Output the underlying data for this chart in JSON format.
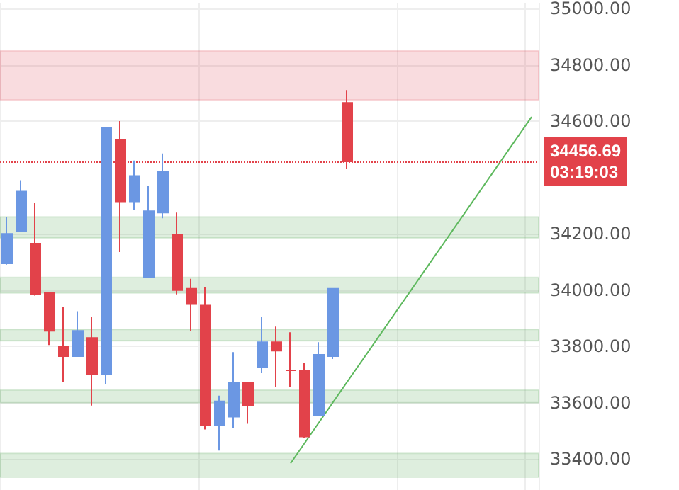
{
  "chart_data": {
    "type": "candlestick",
    "categories": [
      null,
      null,
      null,
      null,
      null,
      null,
      null,
      null,
      null,
      null,
      null,
      null,
      null,
      null,
      null,
      null,
      null,
      null,
      null,
      null,
      null,
      null,
      null,
      null,
      null,
      null,
      null,
      null,
      null,
      null,
      null,
      null,
      null,
      null,
      null,
      null,
      null,
      null
    ],
    "ohlc": [
      [
        34095,
        34260,
        34090,
        34200
      ],
      [
        34210,
        34390,
        34210,
        34350
      ],
      [
        34165,
        34310,
        33980,
        33985
      ],
      [
        33990,
        33990,
        33805,
        33855
      ],
      [
        33800,
        33940,
        33675,
        33765
      ],
      [
        33765,
        33925,
        33765,
        33855
      ],
      [
        33830,
        33905,
        33590,
        33700
      ],
      [
        33700,
        34575,
        33665,
        34575
      ],
      [
        34535,
        34600,
        34135,
        34315
      ],
      [
        34315,
        34460,
        34285,
        34405
      ],
      [
        34045,
        34370,
        34045,
        34280
      ],
      [
        34275,
        34485,
        34255,
        34420
      ],
      [
        34195,
        34275,
        33985,
        34000
      ],
      [
        34005,
        34040,
        33855,
        33950
      ],
      [
        33945,
        34010,
        33505,
        33520
      ],
      [
        33520,
        33625,
        33430,
        33605
      ],
      [
        33550,
        33780,
        33510,
        33670
      ],
      [
        33670,
        33675,
        33525,
        33590
      ],
      [
        33725,
        33905,
        33705,
        33815
      ],
      [
        33815,
        33870,
        33655,
        33785
      ],
      [
        33715,
        33850,
        33655,
        33715
      ],
      [
        33715,
        33740,
        33475,
        33480
      ],
      [
        33555,
        33815,
        33555,
        33770
      ],
      [
        33765,
        34005,
        33755,
        34005
      ],
      [
        34665,
        34710,
        34430,
        34456.69
      ],
      null,
      null,
      null,
      null,
      null,
      null,
      null,
      null,
      null,
      null,
      null,
      null,
      null
    ],
    "colors": [
      "#6b97e3",
      "#6b97e3",
      "#e2424a",
      "#e2424a",
      "#e2424a",
      "#6b97e3",
      "#e2424a",
      "#6b97e3",
      "#e2424a",
      "#6b97e3",
      "#6b97e3",
      "#6b97e3",
      "#e2424a",
      "#e2424a",
      "#e2424a",
      "#6b97e3",
      "#6b97e3",
      "#e2424a",
      "#6b97e3",
      "#e2424a",
      "#e2424a",
      "#e2424a",
      "#6b97e3",
      "#6b97e3",
      "#e2424a",
      null,
      null,
      null,
      null,
      null,
      null,
      null,
      null,
      null,
      null,
      null,
      null,
      null
    ],
    "series": [
      {
        "type": "line",
        "color": "#5cb85c",
        "values": [
          null,
          null,
          null,
          null,
          null,
          null,
          null,
          null,
          null,
          null,
          null,
          null,
          null,
          null,
          null,
          null,
          null,
          null,
          null,
          null,
          33385,
          null,
          null,
          null,
          null,
          null,
          null,
          null,
          null,
          null,
          null,
          null,
          null,
          null,
          null,
          null,
          null,
          34615
        ]
      }
    ],
    "ylim": [
      33290,
      35020
    ],
    "yticks": [
      {
        "value": 33400,
        "label": "33400.00"
      },
      {
        "value": 33600,
        "label": "33600.00"
      },
      {
        "value": 33800,
        "label": "33800.00"
      },
      {
        "value": 34000,
        "label": "34000.00"
      },
      {
        "value": 34200,
        "label": "34200.00"
      },
      {
        "value": 34600,
        "label": "34600.00"
      },
      {
        "value": 34800,
        "label": "34800.00"
      },
      {
        "value": 35000,
        "label": "35000.00"
      }
    ],
    "ref_lines": [
      {
        "axis": "y",
        "value": 34456.69,
        "label": "34456.69",
        "color": "#e2424a",
        "line_style": "dotted"
      }
    ],
    "annotations": [
      "03:19:03"
    ],
    "bands": [
      {
        "axis": "y",
        "from": 34675,
        "to": 34850,
        "color": "#e05260"
      },
      {
        "axis": "y",
        "from": 34185,
        "to": 34260,
        "color": "#5aab5a"
      },
      {
        "axis": "y",
        "from": 33990,
        "to": 34045,
        "color": "#5aab5a"
      },
      {
        "axis": "y",
        "from": 33820,
        "to": 33860,
        "color": "#5aab5a"
      },
      {
        "axis": "y",
        "from": 33600,
        "to": 33645,
        "color": "#5aab5a"
      },
      {
        "axis": "y",
        "from": 33335,
        "to": 33420,
        "color": "#5aab5a"
      }
    ],
    "grid": true
  }
}
